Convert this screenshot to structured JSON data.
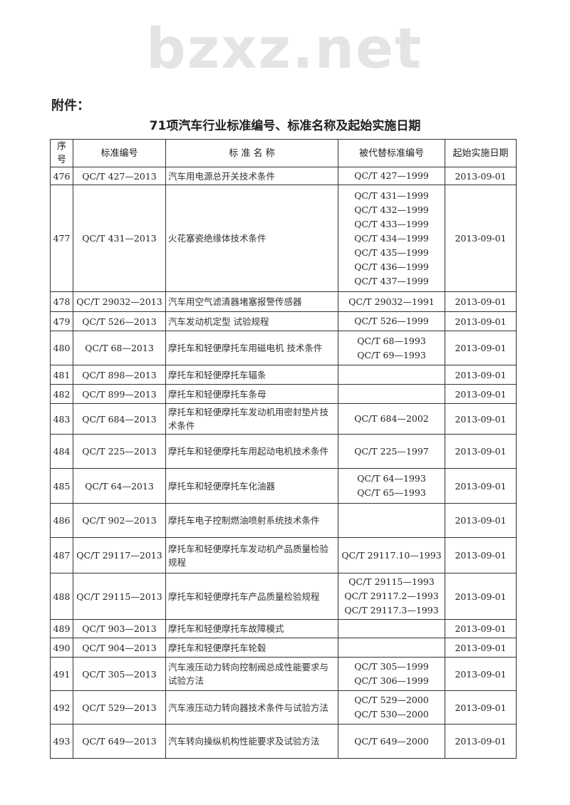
{
  "attachment_label": "附件：",
  "watermark": "bzxz.net",
  "title": "71项汽车行业标准编号、标准名称及起始实施日期",
  "columns": [
    "序号",
    "标准编号",
    "标 准 名 称",
    "被代替标准编号",
    "起始实施日期"
  ],
  "rows": [
    {
      "no": "476",
      "code": "QC/T 427—2013",
      "name": "汽车用电源总开关技术条件",
      "replaced": [
        "QC/T 427—1999"
      ],
      "date": "2013-09-01"
    },
    {
      "no": "477",
      "code": "QC/T 431—2013",
      "name": "火花塞瓷绝缘体技术条件",
      "replaced": [
        "QC/T 431—1999",
        "QC/T 432—1999",
        "QC/T 433—1999",
        "QC/T 434—1999",
        "QC/T 435—1999",
        "QC/T 436—1999",
        "QC/T 437—1999"
      ],
      "date": "2013-09-01"
    },
    {
      "no": "478",
      "code": "QC/T 29032—2013",
      "name": "汽车用空气滤清器堵塞报警传感器",
      "replaced": [
        "QC/T 29032—1991"
      ],
      "date": "2013-09-01"
    },
    {
      "no": "479",
      "code": "QC/T 526—2013",
      "name": "汽车发动机定型 试验规程",
      "replaced": [
        "QC/T 526—1999"
      ],
      "date": "2013-09-01"
    },
    {
      "no": "480",
      "code": "QC/T 68—2013",
      "name": "摩托车和轻便摩托车用磁电机 技术条件",
      "replaced": [
        "QC/T 68—1993",
        "QC/T 69—1993"
      ],
      "date": "2013-09-01"
    },
    {
      "no": "481",
      "code": "QC/T 898—2013",
      "name": "摩托车和轻便摩托车辐条",
      "replaced": [],
      "date": "2013-09-01"
    },
    {
      "no": "482",
      "code": "QC/T 899—2013",
      "name": "摩托车和轻便摩托车条母",
      "replaced": [],
      "date": "2013-09-01"
    },
    {
      "no": "483",
      "code": "QC/T 684—2013",
      "name": "摩托车和轻便摩托车发动机用密封垫片技术条件",
      "replaced": [
        "QC/T 684—2002"
      ],
      "date": "2013-09-01"
    },
    {
      "no": "484",
      "code": "QC/T 225—2013",
      "name": "摩托车和轻便摩托车用起动电机技术条件",
      "replaced": [
        "QC/T 225—1997"
      ],
      "date": "2013-09-01"
    },
    {
      "no": "485",
      "code": "QC/T 64—2013",
      "name": "摩托车和轻便摩托车化油器",
      "replaced": [
        "QC/T 64—1993",
        "QC/T 65—1993"
      ],
      "date": "2013-09-01"
    },
    {
      "no": "486",
      "code": "QC/T 902—2013",
      "name": "摩托车电子控制燃油喷射系统技术条件",
      "replaced": [],
      "date": "2013-09-01"
    },
    {
      "no": "487",
      "code": "QC/T 29117—2013",
      "name": "摩托车和轻便摩托车发动机产品质量检验规程",
      "replaced": [
        "QC/T 29117.10—1993"
      ],
      "date": "2013-09-01"
    },
    {
      "no": "488",
      "code": "QC/T 29115—2013",
      "name": "摩托车和轻便摩托车产品质量检验规程",
      "replaced": [
        "QC/T 29115—1993",
        "QC/T 29117.2—1993",
        "QC/T 29117.3—1993"
      ],
      "date": "2013-09-01"
    },
    {
      "no": "489",
      "code": "QC/T 903—2013",
      "name": "摩托车和轻便摩托车故障模式",
      "replaced": [],
      "date": "2013-09-01"
    },
    {
      "no": "490",
      "code": "QC/T 904—2013",
      "name": "摩托车和轻便摩托车轮毂",
      "replaced": [],
      "date": "2013-09-01"
    },
    {
      "no": "491",
      "code": "QC/T 305—2013",
      "name": "汽车液压动力转向控制阀总成性能要求与试验方法",
      "replaced": [
        "QC/T 305—1999",
        "QC/T 306—1999"
      ],
      "date": "2013-09-01"
    },
    {
      "no": "492",
      "code": "QC/T 529—2013",
      "name": "汽车液压动力转向器技术条件与试验方法",
      "replaced": [
        "QC/T 529—2000",
        "QC/T 530—2000"
      ],
      "date": "2013-09-01"
    },
    {
      "no": "493",
      "code": "QC/T 649—2013",
      "name": "汽车转向操纵机构性能要求及试验方法",
      "replaced": [
        "QC/T 649—2000"
      ],
      "date": "2013-09-01"
    }
  ]
}
